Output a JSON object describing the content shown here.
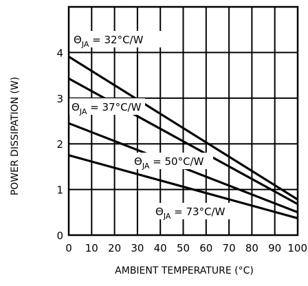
{
  "chart_data": {
    "type": "line",
    "title": "",
    "xlabel": "AMBIENT TEMPERATURE (°C)",
    "ylabel": "POWER DISSIPATION (W)",
    "xlim": [
      0,
      100
    ],
    "ylim": [
      0,
      5
    ],
    "x_ticks": [
      "0",
      "10",
      "20",
      "30",
      "40",
      "50",
      "60",
      "70",
      "80",
      "90",
      "100"
    ],
    "y_ticks": [
      "0",
      "1",
      "2",
      "3",
      "4"
    ],
    "grid": true,
    "series": [
      {
        "name": "32°C/W",
        "x": [
          0,
          100
        ],
        "y": [
          3.91,
          0.78
        ]
      },
      {
        "name": "37°C/W",
        "x": [
          0,
          100
        ],
        "y": [
          3.43,
          0.68
        ]
      },
      {
        "name": "50°C/W",
        "x": [
          0,
          100
        ],
        "y": [
          2.45,
          0.5
        ]
      },
      {
        "name": "73°C/W",
        "x": [
          0,
          100
        ],
        "y": [
          1.75,
          0.37
        ]
      }
    ],
    "annotations": [
      {
        "symbol": "Θ",
        "sub": "JA",
        "text": " = 32°C/W"
      },
      {
        "symbol": "Θ",
        "sub": "JA",
        "text": " = 37°C/W"
      },
      {
        "symbol": "Θ",
        "sub": "JA",
        "text": " = 50°C/W"
      },
      {
        "symbol": "Θ",
        "sub": "JA",
        "text": " = 73°C/W"
      }
    ]
  }
}
